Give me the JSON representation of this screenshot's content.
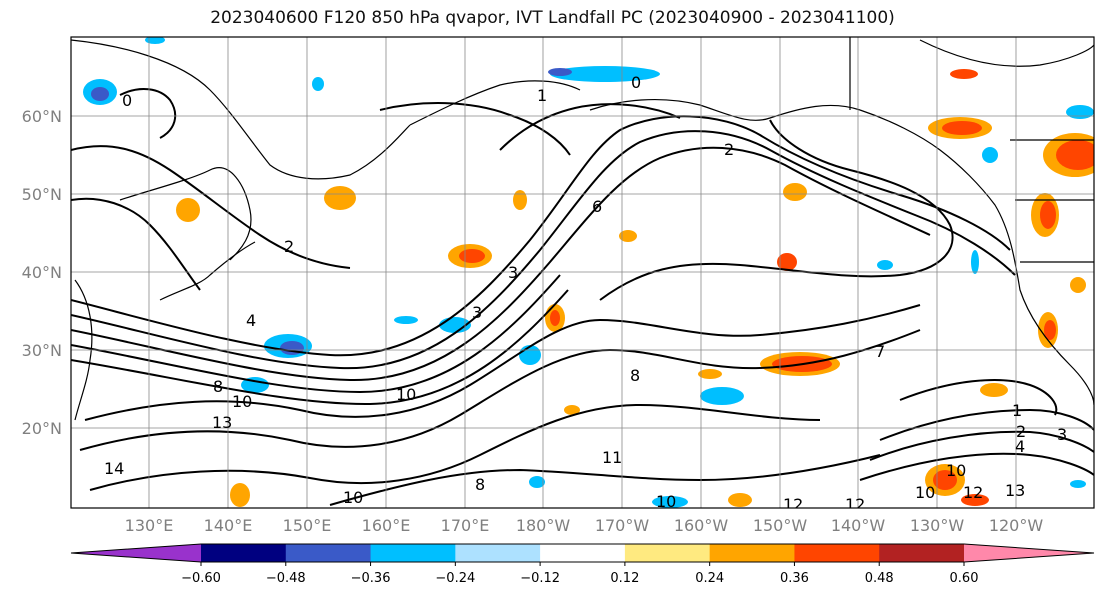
{
  "title": "2023040600 F120 850 hPa qvapor, IVT Landfall PC (2023040900 - 2023041100)",
  "lat_labels": [
    "60°N",
    "50°N",
    "40°N",
    "30°N",
    "20°N"
  ],
  "lon_labels": [
    "130°E",
    "140°E",
    "150°E",
    "160°E",
    "170°E",
    "180°W",
    "170°W",
    "160°W",
    "150°W",
    "140°W",
    "130°W",
    "120°W"
  ],
  "colorbar": {
    "colors": [
      "#9932CC",
      "#000080",
      "#3A5AC8",
      "#00BFFF",
      "#ADE1FF",
      "#FFFFFF",
      "#FFEA80",
      "#FFA500",
      "#FF4500",
      "#B22222",
      "#FF88AA"
    ],
    "tick_labels": [
      "−0.60",
      "−0.48",
      "−0.36",
      "−0.24",
      "−0.12",
      "0.12",
      "0.24",
      "0.36",
      "0.48",
      "0.60"
    ]
  },
  "contour_labels": [
    "0",
    "1",
    "0",
    "2",
    "6",
    "2",
    "3",
    "4",
    "3",
    "7",
    "8",
    "8",
    "10",
    "10",
    "13",
    "14",
    "10",
    "8",
    "11",
    "10",
    "12",
    "12",
    "10",
    "10",
    "12",
    "13",
    "1",
    "2",
    "3",
    "4"
  ]
}
